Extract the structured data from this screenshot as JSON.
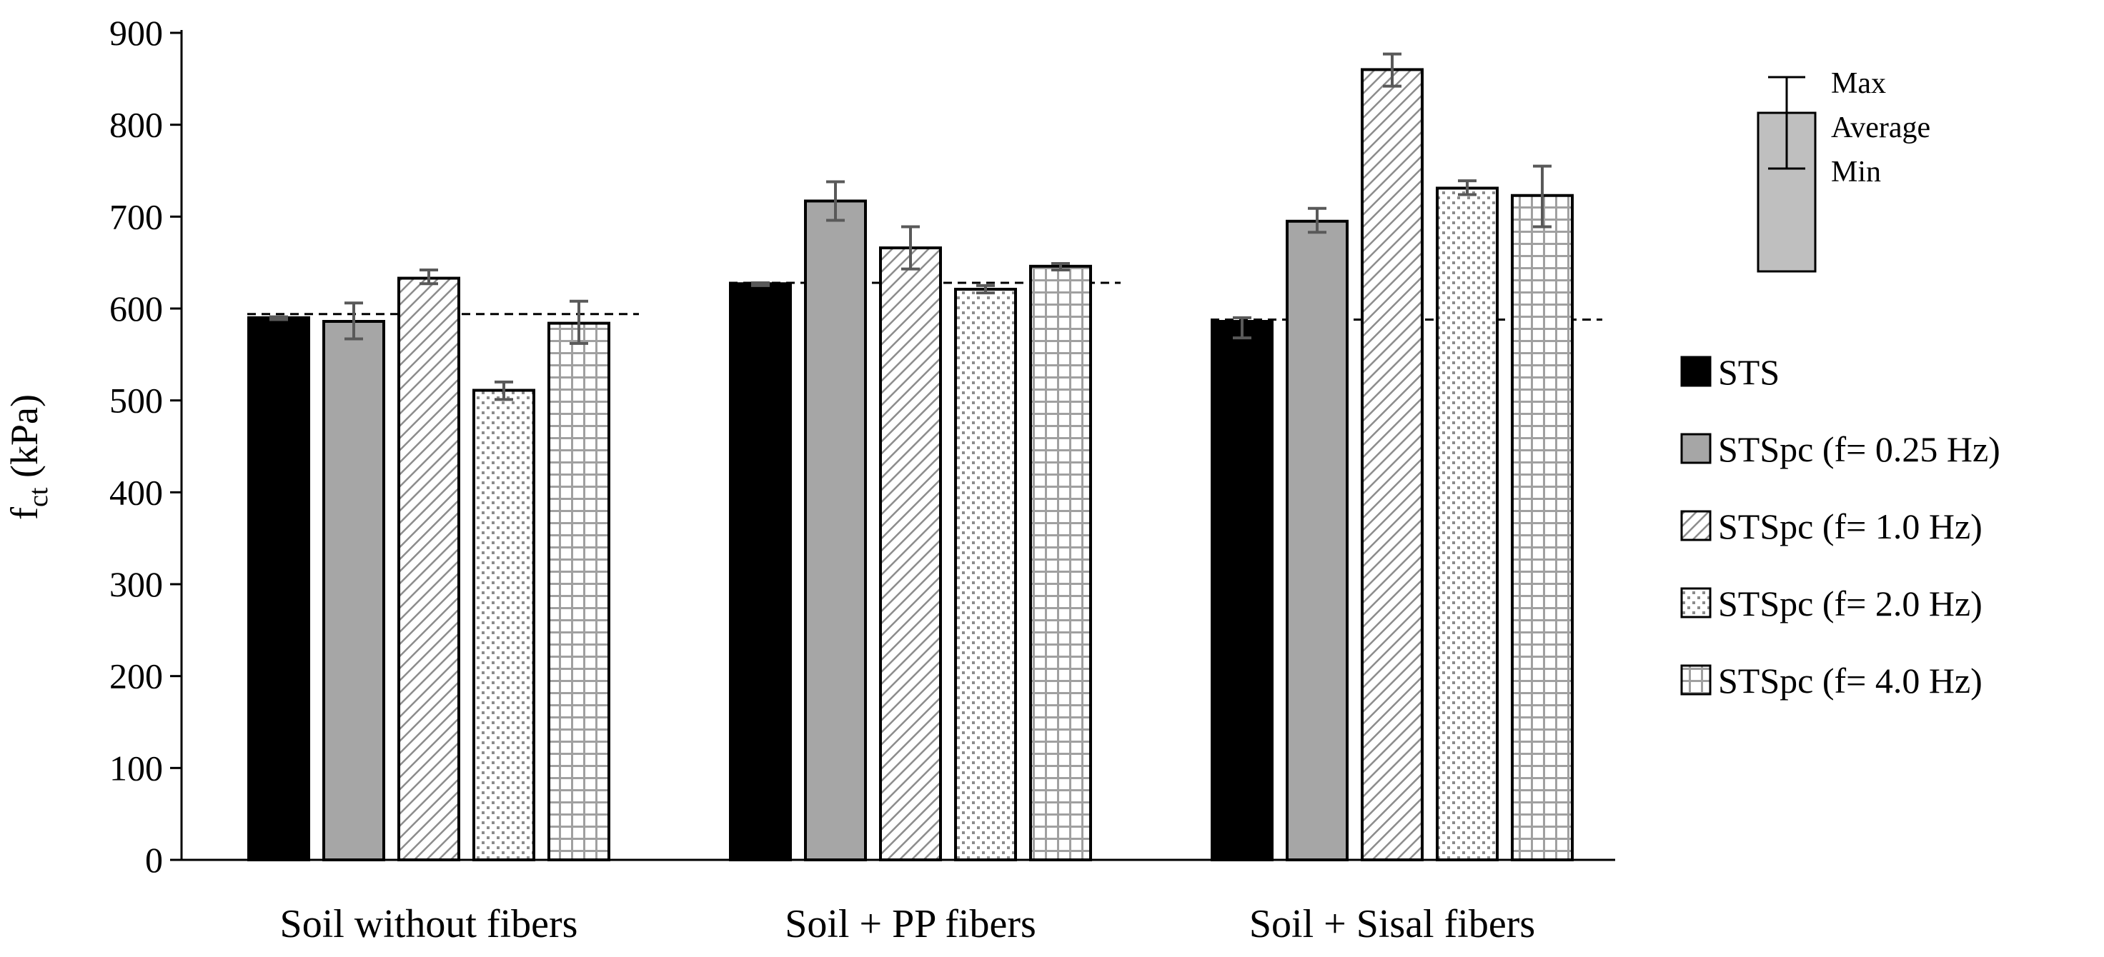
{
  "chart_data": {
    "type": "bar",
    "title": "",
    "xlabel": "",
    "ylabel": {
      "main": "f",
      "sub": "ct",
      "unit": " (kPa)"
    },
    "ylim": [
      0,
      900
    ],
    "yticks": [
      0,
      100,
      200,
      300,
      400,
      500,
      600,
      700,
      800,
      900
    ],
    "categories": [
      "Soil without fibers",
      "Soil + PP fibers",
      "Soil + Sisal fibers"
    ],
    "series": [
      {
        "name": "STS",
        "pattern": "solid-black",
        "values": [
          590,
          627,
          586
        ],
        "err_min": [
          588,
          625,
          568
        ],
        "err_max": [
          591,
          628,
          590
        ]
      },
      {
        "name": "STSpc (f= 0.25 Hz)",
        "pattern": "solid-gray",
        "values": [
          586,
          717,
          695
        ],
        "err_min": [
          567,
          696,
          683
        ],
        "err_max": [
          606,
          738,
          709
        ]
      },
      {
        "name": "STSpc (f= 1.0 Hz)",
        "pattern": "diagonal",
        "values": [
          633,
          666,
          860
        ],
        "err_min": [
          627,
          643,
          842
        ],
        "err_max": [
          642,
          689,
          877
        ]
      },
      {
        "name": "STSpc (f= 2.0 Hz)",
        "pattern": "dots",
        "values": [
          511,
          621,
          731
        ],
        "err_min": [
          501,
          617,
          724
        ],
        "err_max": [
          520,
          625,
          739
        ]
      },
      {
        "name": "STSpc (f= 4.0 Hz)",
        "pattern": "grid",
        "values": [
          584,
          646,
          723
        ],
        "err_min": [
          562,
          642,
          689
        ],
        "err_max": [
          608,
          649,
          755
        ]
      }
    ],
    "reference_lines": [
      594,
      628,
      588
    ],
    "legend_position": "right",
    "error_bar_key": {
      "max": "Max",
      "average": "Average",
      "min": "Min"
    },
    "colors": {
      "black": "#000000",
      "gray": "#a6a6a6",
      "error_bar": "#595959"
    }
  }
}
